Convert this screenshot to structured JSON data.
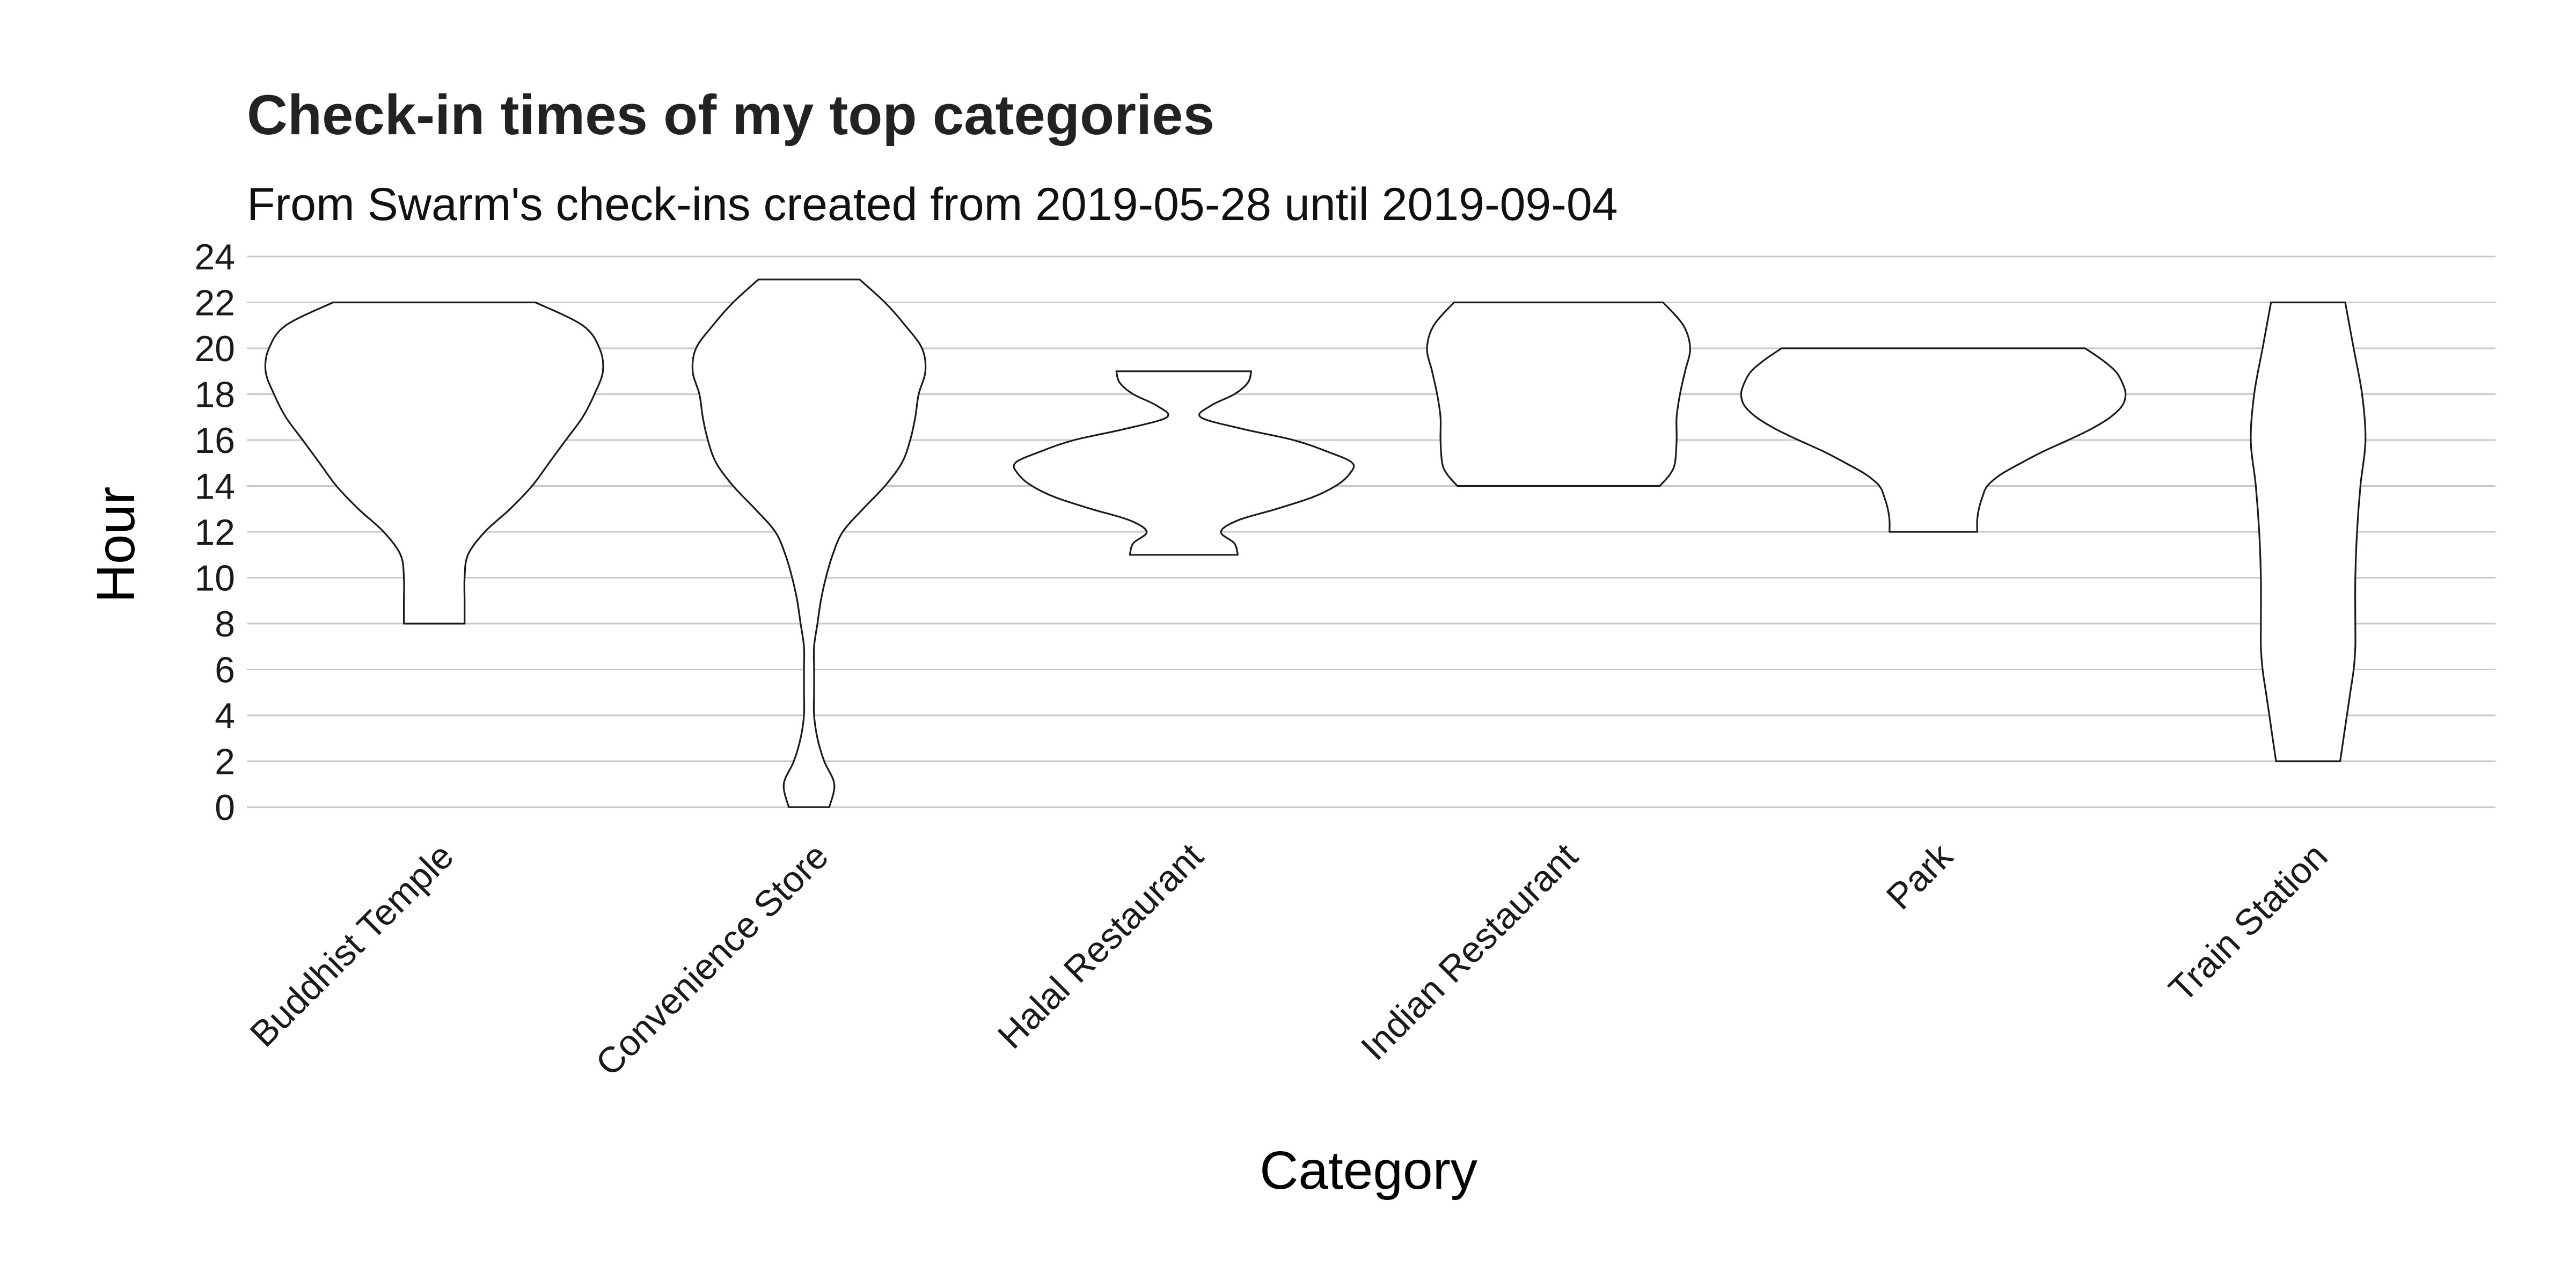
{
  "chart_data": {
    "type": "violin",
    "title": "Check-in times of my top categories",
    "subtitle": "From Swarm's check-ins created from 2019-05-28 until 2019-09-04",
    "xlabel": "Category",
    "ylabel": "Hour",
    "ylim": [
      0,
      24
    ],
    "yticks": [
      0,
      2,
      4,
      6,
      8,
      10,
      12,
      14,
      16,
      18,
      20,
      22,
      24
    ],
    "grid": true,
    "legend": "none",
    "categories": [
      "Buddhist Temple",
      "Convenience Store",
      "Halal Restaurant",
      "Indian Restaurant",
      "Park",
      "Train Station"
    ],
    "violins": [
      {
        "category": "Buddhist Temple",
        "min": 8,
        "max": 22,
        "profile": [
          [
            8,
            0.18
          ],
          [
            9,
            0.18
          ],
          [
            10,
            0.18
          ],
          [
            11,
            0.2
          ],
          [
            12,
            0.3
          ],
          [
            13,
            0.45
          ],
          [
            14,
            0.58
          ],
          [
            15,
            0.68
          ],
          [
            16,
            0.78
          ],
          [
            17,
            0.88
          ],
          [
            18,
            0.95
          ],
          [
            19,
            1.0
          ],
          [
            20,
            0.98
          ],
          [
            21,
            0.88
          ],
          [
            22,
            0.6
          ]
        ]
      },
      {
        "category": "Convenience Store",
        "min": 0,
        "max": 23,
        "profile": [
          [
            0,
            0.12
          ],
          [
            1,
            0.15
          ],
          [
            2,
            0.09
          ],
          [
            3,
            0.05
          ],
          [
            4,
            0.03
          ],
          [
            5,
            0.03
          ],
          [
            6,
            0.03
          ],
          [
            7,
            0.03
          ],
          [
            8,
            0.05
          ],
          [
            9,
            0.07
          ],
          [
            10,
            0.1
          ],
          [
            11,
            0.14
          ],
          [
            12,
            0.2
          ],
          [
            13,
            0.32
          ],
          [
            14,
            0.45
          ],
          [
            15,
            0.55
          ],
          [
            16,
            0.6
          ],
          [
            17,
            0.63
          ],
          [
            18,
            0.65
          ],
          [
            19,
            0.69
          ],
          [
            20,
            0.67
          ],
          [
            21,
            0.57
          ],
          [
            22,
            0.45
          ],
          [
            23,
            0.3
          ]
        ]
      },
      {
        "category": "Halal Restaurant",
        "min": 11,
        "max": 19,
        "profile": [
          [
            11,
            0.32
          ],
          [
            11.5,
            0.3
          ],
          [
            12,
            0.22
          ],
          [
            12.5,
            0.32
          ],
          [
            13,
            0.55
          ],
          [
            13.5,
            0.76
          ],
          [
            14,
            0.9
          ],
          [
            14.5,
            0.98
          ],
          [
            15,
            1.0
          ],
          [
            15.5,
            0.85
          ],
          [
            16,
            0.65
          ],
          [
            16.5,
            0.34
          ],
          [
            17,
            0.1
          ],
          [
            17.5,
            0.16
          ],
          [
            18,
            0.3
          ],
          [
            18.5,
            0.38
          ],
          [
            19,
            0.4
          ]
        ]
      },
      {
        "category": "Indian Restaurant",
        "min": 14,
        "max": 22,
        "profile": [
          [
            14,
            0.6
          ],
          [
            14.5,
            0.66
          ],
          [
            15,
            0.69
          ],
          [
            16,
            0.7
          ],
          [
            17,
            0.7
          ],
          [
            18,
            0.72
          ],
          [
            19,
            0.75
          ],
          [
            20,
            0.78
          ],
          [
            21,
            0.74
          ],
          [
            22,
            0.62
          ]
        ]
      },
      {
        "category": "Park",
        "min": 12,
        "max": 20,
        "profile": [
          [
            12,
            0.26
          ],
          [
            12.5,
            0.26
          ],
          [
            13,
            0.27
          ],
          [
            13.5,
            0.29
          ],
          [
            14,
            0.32
          ],
          [
            14.5,
            0.4
          ],
          [
            15,
            0.52
          ],
          [
            15.5,
            0.65
          ],
          [
            16,
            0.8
          ],
          [
            16.5,
            0.94
          ],
          [
            17,
            1.05
          ],
          [
            17.5,
            1.12
          ],
          [
            18,
            1.14
          ],
          [
            18.5,
            1.12
          ],
          [
            19,
            1.08
          ],
          [
            19.5,
            1.0
          ],
          [
            20,
            0.9
          ]
        ]
      },
      {
        "category": "Train Station",
        "min": 2,
        "max": 22,
        "profile": [
          [
            2,
            0.19
          ],
          [
            3,
            0.21
          ],
          [
            4,
            0.23
          ],
          [
            5,
            0.25
          ],
          [
            6,
            0.27
          ],
          [
            7,
            0.28
          ],
          [
            8,
            0.28
          ],
          [
            10,
            0.28
          ],
          [
            12,
            0.29
          ],
          [
            14,
            0.31
          ],
          [
            16,
            0.34
          ],
          [
            18,
            0.32
          ],
          [
            20,
            0.27
          ],
          [
            22,
            0.22
          ]
        ]
      }
    ]
  }
}
